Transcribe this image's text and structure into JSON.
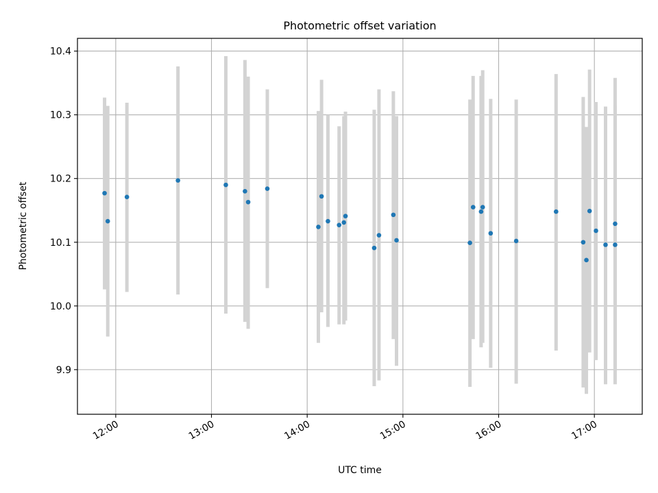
{
  "chart_data": {
    "type": "scatter",
    "title": "Photometric offset variation",
    "xlabel": "UTC time",
    "ylabel": "Photometric offset",
    "x_axis": {
      "kind": "time",
      "xlim": [
        "11:36",
        "17:30"
      ],
      "ticks": [
        "12:00",
        "13:00",
        "14:00",
        "15:00",
        "16:00",
        "17:00"
      ],
      "tick_label_rotation": "slanted"
    },
    "y_axis": {
      "ylim": [
        9.83,
        10.42
      ],
      "ticks": [
        "9.9",
        "10.0",
        "10.1",
        "10.2",
        "10.3",
        "10.4"
      ]
    },
    "grid": true,
    "legend": "none",
    "colors": {
      "marker": "#1f77b4",
      "errorbar": "#d3d3d3",
      "grid": "#b0b0b0"
    },
    "series": [
      {
        "marker": "dot",
        "error_bars": "vertical",
        "points": [
          {
            "x": "11:53",
            "y": 10.177,
            "lo": 10.026,
            "hi": 10.327
          },
          {
            "x": "11:55",
            "y": 10.133,
            "lo": 9.952,
            "hi": 10.314
          },
          {
            "x": "12:07",
            "y": 10.171,
            "lo": 10.022,
            "hi": 10.319
          },
          {
            "x": "12:39",
            "y": 10.197,
            "lo": 10.018,
            "hi": 10.376
          },
          {
            "x": "13:09",
            "y": 10.19,
            "lo": 9.988,
            "hi": 10.392
          },
          {
            "x": "13:21",
            "y": 10.18,
            "lo": 9.975,
            "hi": 10.386
          },
          {
            "x": "13:23",
            "y": 10.163,
            "lo": 9.964,
            "hi": 10.36
          },
          {
            "x": "13:35",
            "y": 10.184,
            "lo": 10.028,
            "hi": 10.34
          },
          {
            "x": "14:07",
            "y": 10.124,
            "lo": 9.942,
            "hi": 10.306
          },
          {
            "x": "14:09",
            "y": 10.172,
            "lo": 9.99,
            "hi": 10.355
          },
          {
            "x": "14:13",
            "y": 10.133,
            "lo": 9.967,
            "hi": 10.3
          },
          {
            "x": "14:20",
            "y": 10.127,
            "lo": 9.971,
            "hi": 10.282
          },
          {
            "x": "14:23",
            "y": 10.131,
            "lo": 9.971,
            "hi": 10.298
          },
          {
            "x": "14:24",
            "y": 10.141,
            "lo": 9.977,
            "hi": 10.305
          },
          {
            "x": "14:42",
            "y": 10.091,
            "lo": 9.874,
            "hi": 10.308
          },
          {
            "x": "14:45",
            "y": 10.111,
            "lo": 9.883,
            "hi": 10.34
          },
          {
            "x": "14:54",
            "y": 10.143,
            "lo": 9.948,
            "hi": 10.337
          },
          {
            "x": "14:56",
            "y": 10.103,
            "lo": 9.906,
            "hi": 10.298
          },
          {
            "x": "15:42",
            "y": 10.099,
            "lo": 9.873,
            "hi": 10.324
          },
          {
            "x": "15:44",
            "y": 10.155,
            "lo": 9.948,
            "hi": 10.361
          },
          {
            "x": "15:49",
            "y": 10.148,
            "lo": 9.935,
            "hi": 10.361
          },
          {
            "x": "15:50",
            "y": 10.155,
            "lo": 9.942,
            "hi": 10.37
          },
          {
            "x": "15:55",
            "y": 10.114,
            "lo": 9.903,
            "hi": 10.325
          },
          {
            "x": "16:11",
            "y": 10.102,
            "lo": 9.878,
            "hi": 10.324
          },
          {
            "x": "16:36",
            "y": 10.148,
            "lo": 9.93,
            "hi": 10.364
          },
          {
            "x": "16:53",
            "y": 10.1,
            "lo": 9.872,
            "hi": 10.328
          },
          {
            "x": "16:55",
            "y": 10.072,
            "lo": 9.862,
            "hi": 10.281
          },
          {
            "x": "16:57",
            "y": 10.149,
            "lo": 9.927,
            "hi": 10.371
          },
          {
            "x": "17:01",
            "y": 10.118,
            "lo": 9.915,
            "hi": 10.32
          },
          {
            "x": "17:07",
            "y": 10.096,
            "lo": 9.877,
            "hi": 10.313
          },
          {
            "x": "17:13",
            "y": 10.096,
            "lo": 9.877,
            "hi": 10.314
          },
          {
            "x": "17:13",
            "y": 10.129,
            "lo": 9.9,
            "hi": 10.358
          }
        ]
      }
    ]
  }
}
